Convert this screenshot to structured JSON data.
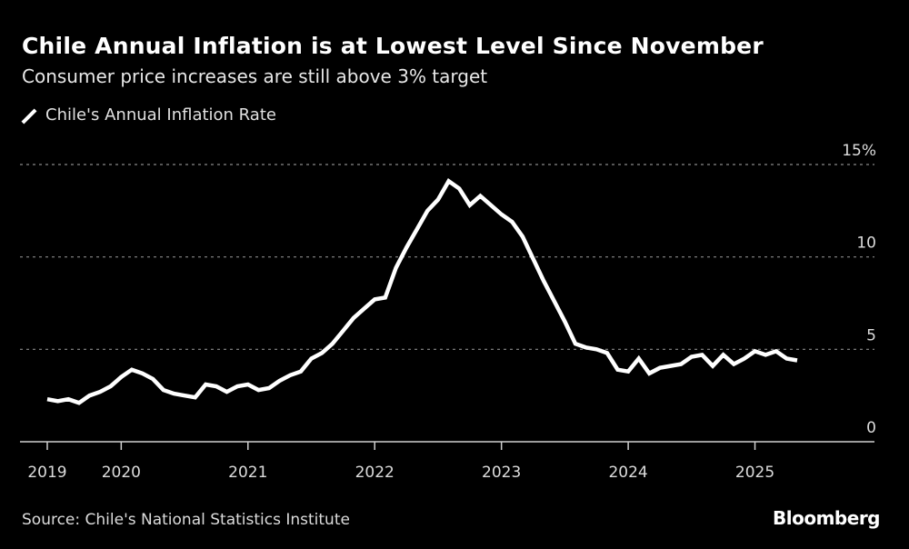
{
  "header": {
    "title": "Chile Annual Inflation is at Lowest Level Since November",
    "subtitle": "Consumer price increases are still above 3% target"
  },
  "legend": {
    "label": "Chile's Annual Inflation Rate",
    "icon": "line-swatch-icon"
  },
  "footer": {
    "source": "Source: Chile's National Statistics Institute",
    "brand": "Bloomberg"
  },
  "colors": {
    "background": "#000000",
    "line": "#ffffff",
    "grid": "#8a8a8a",
    "text": "#dcdcdc"
  },
  "chart_data": {
    "type": "line",
    "title": "Chile Annual Inflation is at Lowest Level Since November",
    "subtitle": "Consumer price increases are still above 3% target",
    "xlabel": "",
    "ylabel": "",
    "ylim": [
      0,
      15
    ],
    "y_ticks": [
      {
        "value": 0,
        "label": "0"
      },
      {
        "value": 5,
        "label": "5"
      },
      {
        "value": 10,
        "label": "10"
      },
      {
        "value": 15,
        "label": "15%"
      }
    ],
    "x_ticks": [
      {
        "month_index": 0,
        "label": "2019"
      },
      {
        "month_index": 7,
        "label": "2020"
      },
      {
        "month_index": 19,
        "label": "2021"
      },
      {
        "month_index": 31,
        "label": "2022"
      },
      {
        "month_index": 43,
        "label": "2023"
      },
      {
        "month_index": 55,
        "label": "2024"
      },
      {
        "month_index": 67,
        "label": "2025"
      }
    ],
    "grid": true,
    "legend_position": "top-left",
    "x_start": "2019-06",
    "x_end": "2025-06",
    "series": [
      {
        "name": "Chile's Annual Inflation Rate",
        "x": [
          "2019-06",
          "2019-07",
          "2019-08",
          "2019-09",
          "2019-10",
          "2019-11",
          "2019-12",
          "2020-01",
          "2020-02",
          "2020-03",
          "2020-04",
          "2020-05",
          "2020-06",
          "2020-07",
          "2020-08",
          "2020-09",
          "2020-10",
          "2020-11",
          "2020-12",
          "2021-01",
          "2021-02",
          "2021-03",
          "2021-04",
          "2021-05",
          "2021-06",
          "2021-07",
          "2021-08",
          "2021-09",
          "2021-10",
          "2021-11",
          "2021-12",
          "2022-01",
          "2022-02",
          "2022-03",
          "2022-04",
          "2022-05",
          "2022-06",
          "2022-07",
          "2022-08",
          "2022-09",
          "2022-10",
          "2022-11",
          "2022-12",
          "2023-01",
          "2023-02",
          "2023-03",
          "2023-04",
          "2023-05",
          "2023-06",
          "2023-07",
          "2023-08",
          "2023-09",
          "2023-10",
          "2023-11",
          "2023-12",
          "2024-01",
          "2024-02",
          "2024-03",
          "2024-04",
          "2024-05",
          "2024-06",
          "2024-07",
          "2024-08",
          "2024-09",
          "2024-10",
          "2024-11",
          "2024-12",
          "2025-01",
          "2025-02",
          "2025-03",
          "2025-04",
          "2025-05"
        ],
        "values": [
          2.3,
          2.2,
          2.3,
          2.1,
          2.5,
          2.7,
          3.0,
          3.5,
          3.9,
          3.7,
          3.4,
          2.8,
          2.6,
          2.5,
          2.4,
          3.1,
          3.0,
          2.7,
          3.0,
          3.1,
          2.8,
          2.9,
          3.3,
          3.6,
          3.8,
          4.5,
          4.8,
          5.3,
          6.0,
          6.7,
          7.2,
          7.7,
          7.8,
          9.4,
          10.5,
          11.5,
          12.5,
          13.1,
          14.1,
          13.7,
          12.8,
          13.3,
          12.8,
          12.3,
          11.9,
          11.1,
          9.9,
          8.7,
          7.6,
          6.5,
          5.3,
          5.1,
          5.0,
          4.8,
          3.9,
          3.8,
          4.5,
          3.7,
          4.0,
          4.1,
          4.2,
          4.6,
          4.7,
          4.1,
          4.7,
          4.2,
          4.5,
          4.9,
          4.7,
          4.9,
          4.5,
          4.4
        ]
      }
    ]
  }
}
